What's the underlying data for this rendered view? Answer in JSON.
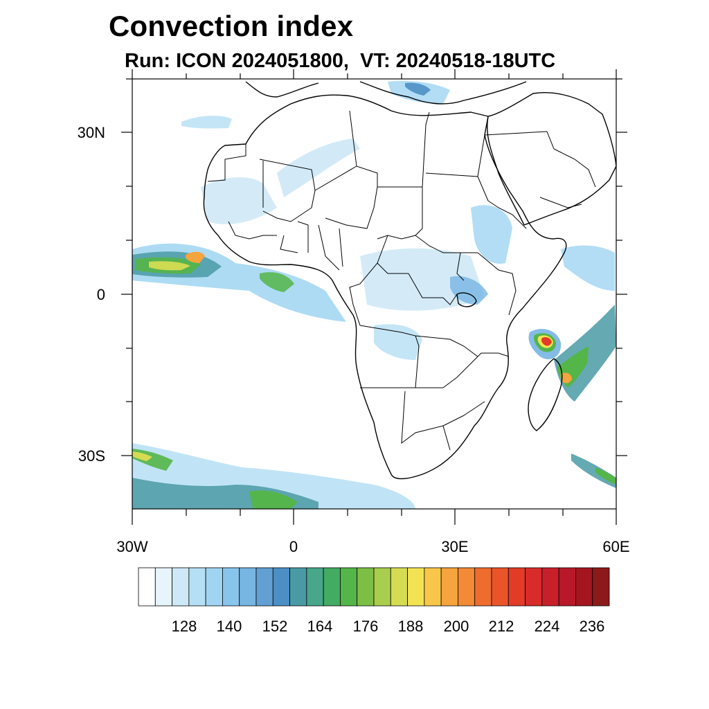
{
  "title": "Convection index",
  "subtitle": "Run: ICON 2024051800,  VT: 20240518-18UTC",
  "axes": {
    "lat_labels": [
      "30N",
      "0",
      "30S"
    ],
    "lon_labels": [
      "30W",
      "0",
      "30E",
      "60E"
    ],
    "lon_range": [
      -30,
      60
    ],
    "lat_range": [
      -40,
      40
    ]
  },
  "colorbar": {
    "labels": [
      "128",
      "140",
      "152",
      "164",
      "176",
      "188",
      "200",
      "212",
      "224",
      "236"
    ],
    "colors": [
      "#ffffff",
      "#e6f4fb",
      "#cde8f6",
      "#b5dff4",
      "#9fd5f2",
      "#88c5ec",
      "#77b5e2",
      "#629fd3",
      "#4c8fc4",
      "#4a9aa5",
      "#48a68a",
      "#44ab63",
      "#54b548",
      "#7dbf45",
      "#a9cd4d",
      "#d5dc52",
      "#f3e353",
      "#f8c649",
      "#f6a43e",
      "#f28a36",
      "#ee6c2e",
      "#e95429",
      "#e23b27",
      "#d72c2a",
      "#c8202b",
      "#b8182a",
      "#a4161f",
      "#8d1a1a"
    ]
  },
  "map": {
    "land_outline_color": "#000000",
    "field_colors": {
      "low": "#b5dff4",
      "mid": "#77b5e2",
      "teal": "#4a9aa5",
      "green": "#54b548",
      "yellow": "#f3e353",
      "orange": "#f6a43e",
      "red": "#e23b27"
    }
  }
}
